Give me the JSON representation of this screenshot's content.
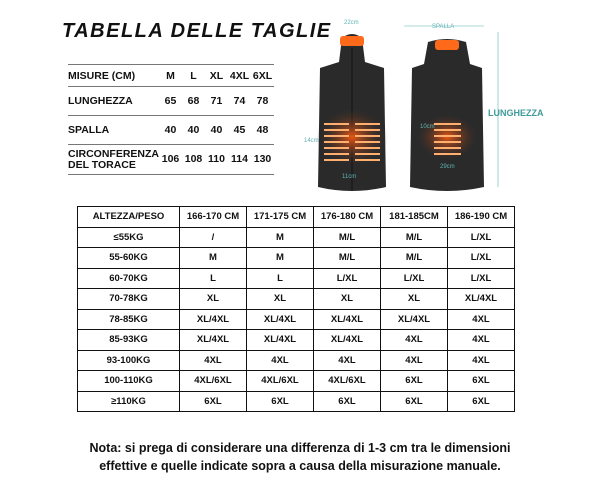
{
  "title": "TABELLA DELLE TAGLIE",
  "measurements": {
    "header": [
      "MISURE (CM)",
      "M",
      "L",
      "XL",
      "4XL",
      "6XL"
    ],
    "rows": [
      {
        "label": "LUNGHEZZA",
        "values": [
          "65",
          "68",
          "71",
          "74",
          "78"
        ]
      },
      {
        "label": "SPALLA",
        "values": [
          "40",
          "40",
          "40",
          "45",
          "48"
        ]
      },
      {
        "label": "CIRCONFERENZA DEL TORACE",
        "values": [
          "106",
          "108",
          "110",
          "114",
          "130"
        ]
      }
    ]
  },
  "diagram": {
    "collar": "22cm",
    "front_height": "14cm",
    "front_width": "11cm",
    "spalla": "SPALLA",
    "back_height": "10cm",
    "back_width": "29cm",
    "lunghezza": "LUNGHEZZA",
    "vest_color": "#2a2a2a",
    "heater_color": "#ff6a1a",
    "dimension_color": "#5fb3b3"
  },
  "size_table": {
    "header": [
      "ALTEZZA/PESO",
      "166-170 CM",
      "171-175 CM",
      "176-180 CM",
      "181-185CM",
      "186-190 CM"
    ],
    "rows": [
      [
        "≤55KG",
        "/",
        "M",
        "M/L",
        "M/L",
        "L/XL"
      ],
      [
        "55-60KG",
        "M",
        "M",
        "M/L",
        "M/L",
        "L/XL"
      ],
      [
        "60-70KG",
        "L",
        "L",
        "L/XL",
        "L/XL",
        "L/XL"
      ],
      [
        "70-78KG",
        "XL",
        "XL",
        "XL",
        "XL",
        "XL/4XL"
      ],
      [
        "78-85KG",
        "XL/4XL",
        "XL/4XL",
        "XL/4XL",
        "XL/4XL",
        "4XL"
      ],
      [
        "85-93KG",
        "XL/4XL",
        "XL/4XL",
        "XL/4XL",
        "4XL",
        "4XL"
      ],
      [
        "93-100KG",
        "4XL",
        "4XL",
        "4XL",
        "4XL",
        "4XL"
      ],
      [
        "100-110KG",
        "4XL/6XL",
        "4XL/6XL",
        "4XL/6XL",
        "6XL",
        "6XL"
      ],
      [
        "≥110KG",
        "6XL",
        "6XL",
        "6XL",
        "6XL",
        "6XL"
      ]
    ]
  },
  "note": {
    "line1": "Nota: si prega di considerare una differenza di 1-3 cm tra le dimensioni",
    "line2": "effettive e quelle indicate sopra a causa della misurazione manuale."
  }
}
